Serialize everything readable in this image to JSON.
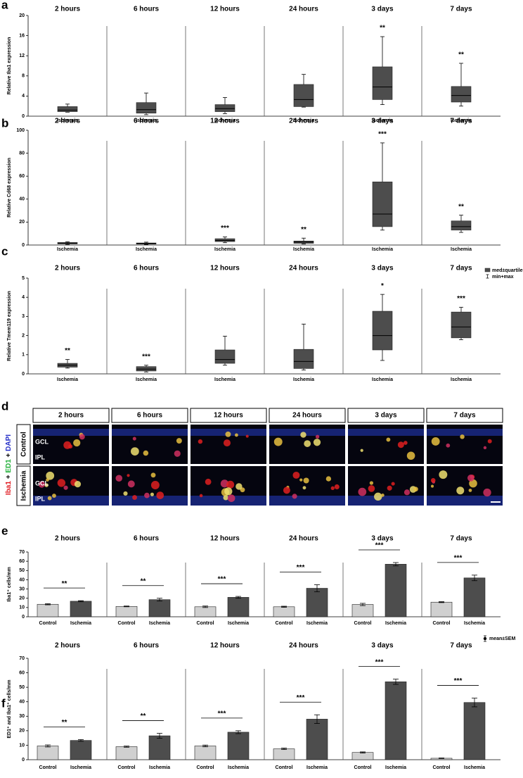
{
  "chart_data": [
    {
      "type": "box",
      "label": "a",
      "ylabel": "Relative Iba1 expression",
      "groups": [
        "2 hours",
        "6 hours",
        "12 hours",
        "24 hours",
        "3 days",
        "7 days"
      ],
      "ylim": [
        0,
        20
      ],
      "yticks": [
        0,
        4,
        8,
        12,
        16,
        20
      ],
      "series": [
        {
          "name": "Ischemia",
          "color": "#4d4d4d",
          "min": [
            0.8,
            0.3,
            0.5,
            1.8,
            2.3,
            2.0
          ],
          "q1": [
            0.9,
            0.6,
            0.9,
            1.9,
            3.3,
            2.8
          ],
          "median": [
            1.2,
            1.3,
            1.5,
            3.3,
            5.8,
            4.1
          ],
          "q3": [
            1.9,
            2.7,
            2.3,
            6.3,
            9.8,
            5.9
          ],
          "max": [
            2.4,
            4.6,
            3.7,
            8.3,
            15.8,
            10.5
          ]
        }
      ],
      "significance": [
        null,
        null,
        null,
        null,
        "**",
        "**"
      ]
    },
    {
      "type": "box",
      "label": "b",
      "ylabel": "Relative Cd68 expression",
      "groups": [
        "2 hours",
        "6 hours",
        "12 hours",
        "24 hours",
        "3 days",
        "7 days"
      ],
      "ylim": [
        0,
        100
      ],
      "yticks": [
        0,
        20,
        40,
        60,
        80,
        100
      ],
      "series": [
        {
          "name": "Ischemia",
          "color": "#4d4d4d",
          "min": [
            0.5,
            0.4,
            2,
            1,
            13,
            11
          ],
          "q1": [
            1,
            0.8,
            3,
            1.5,
            16,
            13
          ],
          "median": [
            1.5,
            1.2,
            4,
            2.5,
            27,
            16
          ],
          "q3": [
            2.2,
            1.8,
            5.5,
            3.5,
            55,
            21
          ],
          "max": [
            2.8,
            2.5,
            7,
            6,
            89,
            26
          ]
        }
      ],
      "significance": [
        null,
        null,
        "***",
        "**",
        "***",
        "**"
      ]
    },
    {
      "type": "box",
      "label": "c",
      "ylabel": "Relative Tmem119 expression",
      "groups": [
        "2 hours",
        "6 hours",
        "12 hours",
        "24 hours",
        "3 days",
        "7 days"
      ],
      "ylim": [
        0,
        5
      ],
      "yticks": [
        0,
        1,
        2,
        3,
        4,
        5
      ],
      "legend": [
        "med±quartile",
        "min+max"
      ],
      "series": [
        {
          "name": "Ischemia",
          "color": "#4d4d4d",
          "min": [
            0.3,
            0.1,
            0.45,
            0.2,
            0.7,
            1.78
          ],
          "q1": [
            0.35,
            0.15,
            0.55,
            0.28,
            1.25,
            1.88
          ],
          "median": [
            0.45,
            0.25,
            0.75,
            0.65,
            2.0,
            2.45
          ],
          "q3": [
            0.55,
            0.38,
            1.25,
            1.28,
            3.27,
            3.23
          ],
          "max": [
            0.75,
            0.45,
            1.97,
            2.6,
            4.15,
            3.48
          ]
        }
      ],
      "significance": [
        "**",
        "***",
        null,
        null,
        "*",
        "***"
      ]
    },
    {
      "type": "bar",
      "label": "e",
      "ylabel": "Iba1⁺ cells/mm",
      "groups": [
        "2 hours",
        "6 hours",
        "12 hours",
        "24 hours",
        "3 days",
        "7 days"
      ],
      "ylim": [
        0,
        70
      ],
      "yticks": [
        0,
        10,
        20,
        30,
        40,
        50,
        60,
        70
      ],
      "series": [
        {
          "name": "Control",
          "color": "#d0d0d0",
          "values": [
            13.5,
            11.2,
            10.8,
            10.8,
            13.3,
            15.8
          ],
          "errors": [
            0.6,
            0.4,
            0.8,
            0.6,
            1.2,
            0.5
          ]
        },
        {
          "name": "Ischemia",
          "color": "#4d4d4d",
          "values": [
            16.8,
            18.5,
            21,
            30.8,
            56.8,
            42
          ],
          "errors": [
            0.6,
            1.5,
            1,
            3.8,
            1.8,
            3
          ]
        }
      ],
      "significance": [
        "**",
        "**",
        "***",
        "***",
        "***",
        "***"
      ]
    },
    {
      "type": "bar",
      "label": "f",
      "ylabel": "ED1⁺ and Iba1⁺ cells/mm",
      "groups": [
        "2 hours",
        "6 hours",
        "12 hours",
        "24 hours",
        "3 days",
        "7 days"
      ],
      "ylim": [
        0,
        70
      ],
      "yticks": [
        0,
        10,
        20,
        30,
        40,
        50,
        60,
        70
      ],
      "legend": [
        "mean±SEM"
      ],
      "series": [
        {
          "name": "Control",
          "color": "#d0d0d0",
          "values": [
            9.5,
            9,
            9.5,
            7.5,
            5,
            1
          ],
          "errors": [
            0.7,
            0.4,
            0.6,
            0.5,
            0.4,
            0.2
          ]
        },
        {
          "name": "Ischemia",
          "color": "#4d4d4d",
          "values": [
            13.3,
            16.5,
            19,
            28,
            53.8,
            39.5
          ],
          "errors": [
            0.6,
            1.7,
            1,
            3,
            1.8,
            3
          ]
        }
      ],
      "significance": [
        "**",
        "**",
        "***",
        "***",
        "***",
        "***"
      ]
    }
  ],
  "panel_d": {
    "label": "d",
    "columns": [
      "2 hours",
      "6 hours",
      "12 hours",
      "24 hours",
      "3 days",
      "7 days"
    ],
    "rows": [
      "Control",
      "Ischemia"
    ],
    "stain": [
      "Iba1",
      " + ",
      "ED1",
      " + ",
      "DAPI"
    ],
    "layers": [
      "GCL",
      "IPL"
    ]
  }
}
